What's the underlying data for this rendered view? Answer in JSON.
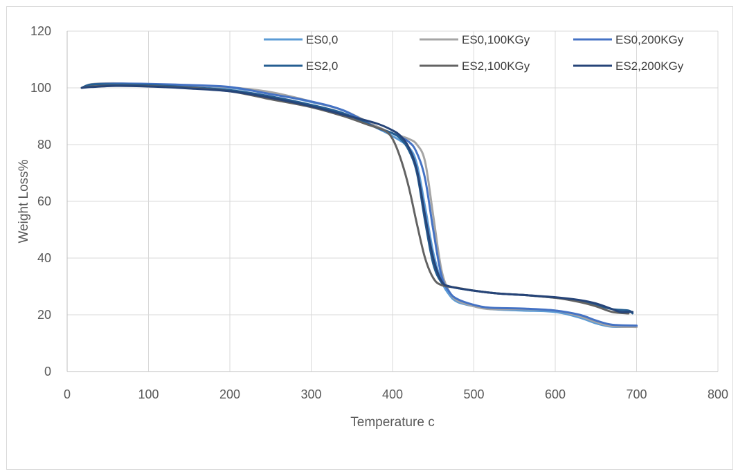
{
  "chart_data": {
    "type": "line",
    "title": "",
    "xlabel": "Temperature c",
    "ylabel": "Weight Loss%",
    "xlim": [
      0,
      800
    ],
    "ylim": [
      0,
      120
    ],
    "xticks": [
      0,
      100,
      200,
      300,
      400,
      500,
      600,
      700,
      800
    ],
    "yticks": [
      0,
      20,
      40,
      60,
      80,
      100,
      120
    ],
    "xtick_labels": [
      "0",
      "100",
      "200",
      "300",
      "400",
      "500",
      "600",
      "700",
      "800"
    ],
    "ytick_labels": [
      "0",
      "20",
      "40",
      "60",
      "80",
      "100",
      "120"
    ],
    "grid": true,
    "legend_position": "top",
    "series": [
      {
        "name": "ES0,0",
        "color": "#5b9bd5",
        "points": [
          [
            18,
            100
          ],
          [
            30,
            101.2
          ],
          [
            60,
            101.5
          ],
          [
            100,
            101.2
          ],
          [
            150,
            100.8
          ],
          [
            200,
            100
          ],
          [
            250,
            98
          ],
          [
            300,
            95
          ],
          [
            340,
            92
          ],
          [
            380,
            86
          ],
          [
            400,
            83
          ],
          [
            420,
            79
          ],
          [
            430,
            73
          ],
          [
            440,
            58
          ],
          [
            450,
            42
          ],
          [
            460,
            32
          ],
          [
            470,
            27
          ],
          [
            480,
            24.5
          ],
          [
            500,
            23
          ],
          [
            520,
            22
          ],
          [
            560,
            21.5
          ],
          [
            600,
            21
          ],
          [
            630,
            19
          ],
          [
            650,
            17
          ],
          [
            670,
            15.8
          ],
          [
            700,
            15.8
          ]
        ]
      },
      {
        "name": "ES0,100KGy",
        "color": "#a5a5a5",
        "points": [
          [
            18,
            100
          ],
          [
            30,
            101.3
          ],
          [
            60,
            101.6
          ],
          [
            100,
            101.2
          ],
          [
            150,
            100.8
          ],
          [
            200,
            100.2
          ],
          [
            250,
            98.5
          ],
          [
            300,
            95.2
          ],
          [
            340,
            92
          ],
          [
            380,
            86.5
          ],
          [
            400,
            84
          ],
          [
            420,
            82
          ],
          [
            430,
            80
          ],
          [
            440,
            74
          ],
          [
            450,
            55
          ],
          [
            460,
            36
          ],
          [
            470,
            28
          ],
          [
            480,
            25
          ],
          [
            500,
            23
          ],
          [
            520,
            22
          ],
          [
            560,
            22
          ],
          [
            600,
            21.5
          ],
          [
            630,
            19.5
          ],
          [
            650,
            17.5
          ],
          [
            670,
            16
          ],
          [
            700,
            15.7
          ]
        ]
      },
      {
        "name": "ES0,200KGy",
        "color": "#4472c4",
        "points": [
          [
            18,
            100
          ],
          [
            30,
            101.2
          ],
          [
            60,
            101.5
          ],
          [
            100,
            101.4
          ],
          [
            150,
            101
          ],
          [
            200,
            100.3
          ],
          [
            250,
            97.8
          ],
          [
            300,
            95.2
          ],
          [
            340,
            92
          ],
          [
            380,
            86
          ],
          [
            400,
            84
          ],
          [
            420,
            81
          ],
          [
            430,
            77
          ],
          [
            440,
            68
          ],
          [
            450,
            50
          ],
          [
            460,
            34
          ],
          [
            470,
            28
          ],
          [
            480,
            25.5
          ],
          [
            500,
            23.5
          ],
          [
            520,
            22.5
          ],
          [
            560,
            22.2
          ],
          [
            600,
            21.5
          ],
          [
            630,
            20
          ],
          [
            650,
            18
          ],
          [
            670,
            16.5
          ],
          [
            700,
            16.2
          ]
        ]
      },
      {
        "name": "ES2,0",
        "color": "#255e91",
        "points": [
          [
            18,
            100
          ],
          [
            30,
            101.2
          ],
          [
            60,
            101.2
          ],
          [
            100,
            101
          ],
          [
            150,
            100.2
          ],
          [
            200,
            99.2
          ],
          [
            250,
            97
          ],
          [
            300,
            94
          ],
          [
            340,
            91
          ],
          [
            380,
            86
          ],
          [
            400,
            84
          ],
          [
            410,
            82
          ],
          [
            420,
            78
          ],
          [
            430,
            70
          ],
          [
            440,
            53
          ],
          [
            450,
            38
          ],
          [
            460,
            31.5
          ],
          [
            470,
            30
          ],
          [
            500,
            28.5
          ],
          [
            530,
            27.5
          ],
          [
            560,
            27
          ],
          [
            600,
            26
          ],
          [
            630,
            25
          ],
          [
            650,
            23.5
          ],
          [
            670,
            22
          ],
          [
            690,
            21.5
          ],
          [
            695,
            20.5
          ]
        ]
      },
      {
        "name": "ES2,100KGy",
        "color": "#636363",
        "points": [
          [
            18,
            100
          ],
          [
            30,
            100.5
          ],
          [
            60,
            100.8
          ],
          [
            100,
            100.6
          ],
          [
            150,
            100
          ],
          [
            200,
            98.8
          ],
          [
            250,
            96
          ],
          [
            300,
            93.2
          ],
          [
            340,
            90
          ],
          [
            370,
            87
          ],
          [
            390,
            85
          ],
          [
            400,
            82
          ],
          [
            410,
            75
          ],
          [
            420,
            65
          ],
          [
            430,
            52
          ],
          [
            440,
            40
          ],
          [
            450,
            33
          ],
          [
            460,
            30.5
          ],
          [
            480,
            29.5
          ],
          [
            500,
            28.5
          ],
          [
            530,
            27.5
          ],
          [
            560,
            27
          ],
          [
            600,
            26
          ],
          [
            630,
            24.5
          ],
          [
            650,
            23
          ],
          [
            670,
            21
          ],
          [
            690,
            20.5
          ]
        ]
      },
      {
        "name": "ES2,200KGy",
        "color": "#264478",
        "points": [
          [
            18,
            100
          ],
          [
            30,
            100.3
          ],
          [
            60,
            100.7
          ],
          [
            100,
            100.5
          ],
          [
            150,
            99.8
          ],
          [
            200,
            98.8
          ],
          [
            250,
            96.5
          ],
          [
            300,
            93.5
          ],
          [
            340,
            90.5
          ],
          [
            380,
            87.5
          ],
          [
            400,
            85
          ],
          [
            410,
            83
          ],
          [
            420,
            79
          ],
          [
            430,
            71
          ],
          [
            440,
            55
          ],
          [
            450,
            40
          ],
          [
            460,
            32
          ],
          [
            470,
            30
          ],
          [
            500,
            28.5
          ],
          [
            530,
            27.5
          ],
          [
            560,
            27
          ],
          [
            600,
            26.2
          ],
          [
            630,
            25.2
          ],
          [
            650,
            24
          ],
          [
            670,
            22
          ],
          [
            680,
            21
          ],
          [
            690,
            21
          ],
          [
            695,
            21
          ]
        ]
      }
    ]
  }
}
